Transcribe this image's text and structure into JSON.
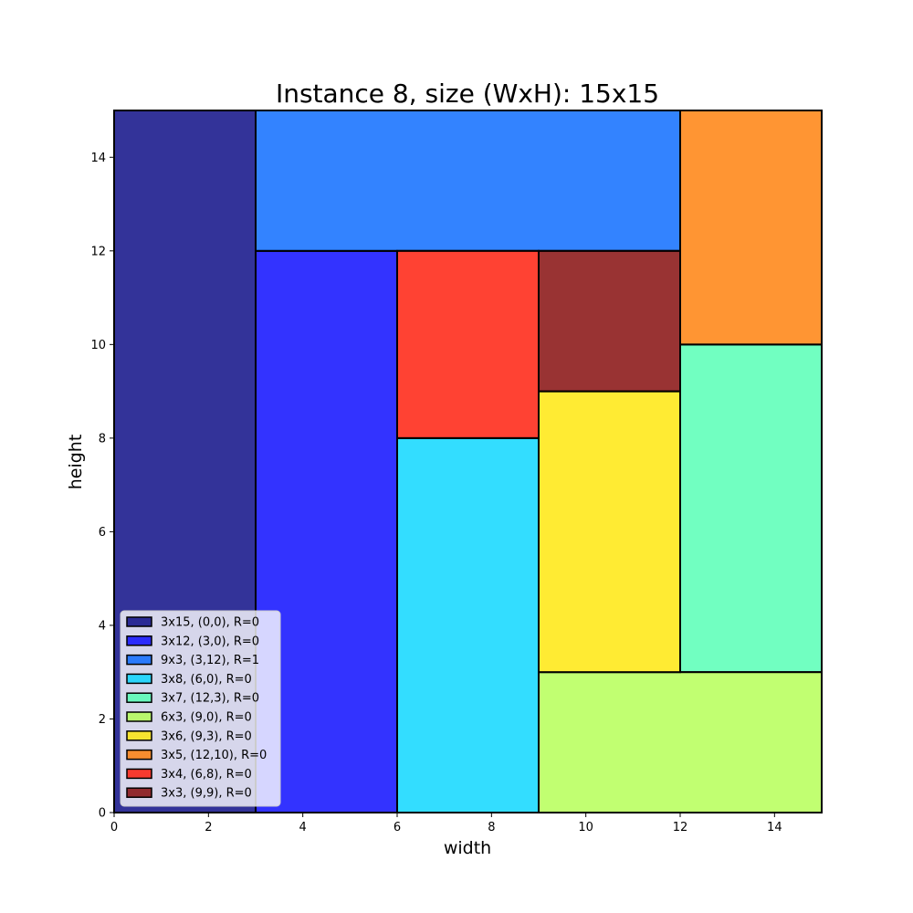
{
  "chart_data": {
    "type": "packing",
    "title": "Instance 8, size (WxH): 15x15",
    "xlabel": "width",
    "ylabel": "height",
    "xlim": [
      0,
      15
    ],
    "ylim": [
      0,
      15
    ],
    "xticks": [
      0,
      2,
      4,
      6,
      8,
      10,
      12,
      14
    ],
    "yticks": [
      0,
      2,
      4,
      6,
      8,
      10,
      12,
      14
    ],
    "grid": false,
    "legend_position": "lower-left",
    "rectangles": [
      {
        "label": "3x15, (0,0), R=0",
        "x": 0,
        "y": 0,
        "w": 3,
        "h": 15,
        "color": "#00007f"
      },
      {
        "label": "3x12, (3,0), R=0",
        "x": 3,
        "y": 0,
        "w": 3,
        "h": 12,
        "color": "#0000ff"
      },
      {
        "label": "9x3, (3,12), R=1",
        "x": 3,
        "y": 12,
        "w": 9,
        "h": 3,
        "color": "#0064ff"
      },
      {
        "label": "3x8, (6,0), R=0",
        "x": 6,
        "y": 0,
        "w": 3,
        "h": 8,
        "color": "#00d4ff"
      },
      {
        "label": "3x7, (12,3), R=0",
        "x": 12,
        "y": 3,
        "w": 3,
        "h": 7,
        "color": "#4dffb2"
      },
      {
        "label": "6x3, (9,0), R=0",
        "x": 9,
        "y": 0,
        "w": 6,
        "h": 3,
        "color": "#b2ff4d"
      },
      {
        "label": "3x6, (9,3), R=0",
        "x": 9,
        "y": 3,
        "w": 3,
        "h": 6,
        "color": "#ffe600"
      },
      {
        "label": "3x5, (12,10), R=0",
        "x": 12,
        "y": 10,
        "w": 3,
        "h": 5,
        "color": "#ff7a00"
      },
      {
        "label": "3x4, (6,8), R=0",
        "x": 6,
        "y": 8,
        "w": 3,
        "h": 4,
        "color": "#ff1300"
      },
      {
        "label": "3x3, (9,9), R=0",
        "x": 9,
        "y": 9,
        "w": 3,
        "h": 3,
        "color": "#7f0000"
      }
    ]
  }
}
